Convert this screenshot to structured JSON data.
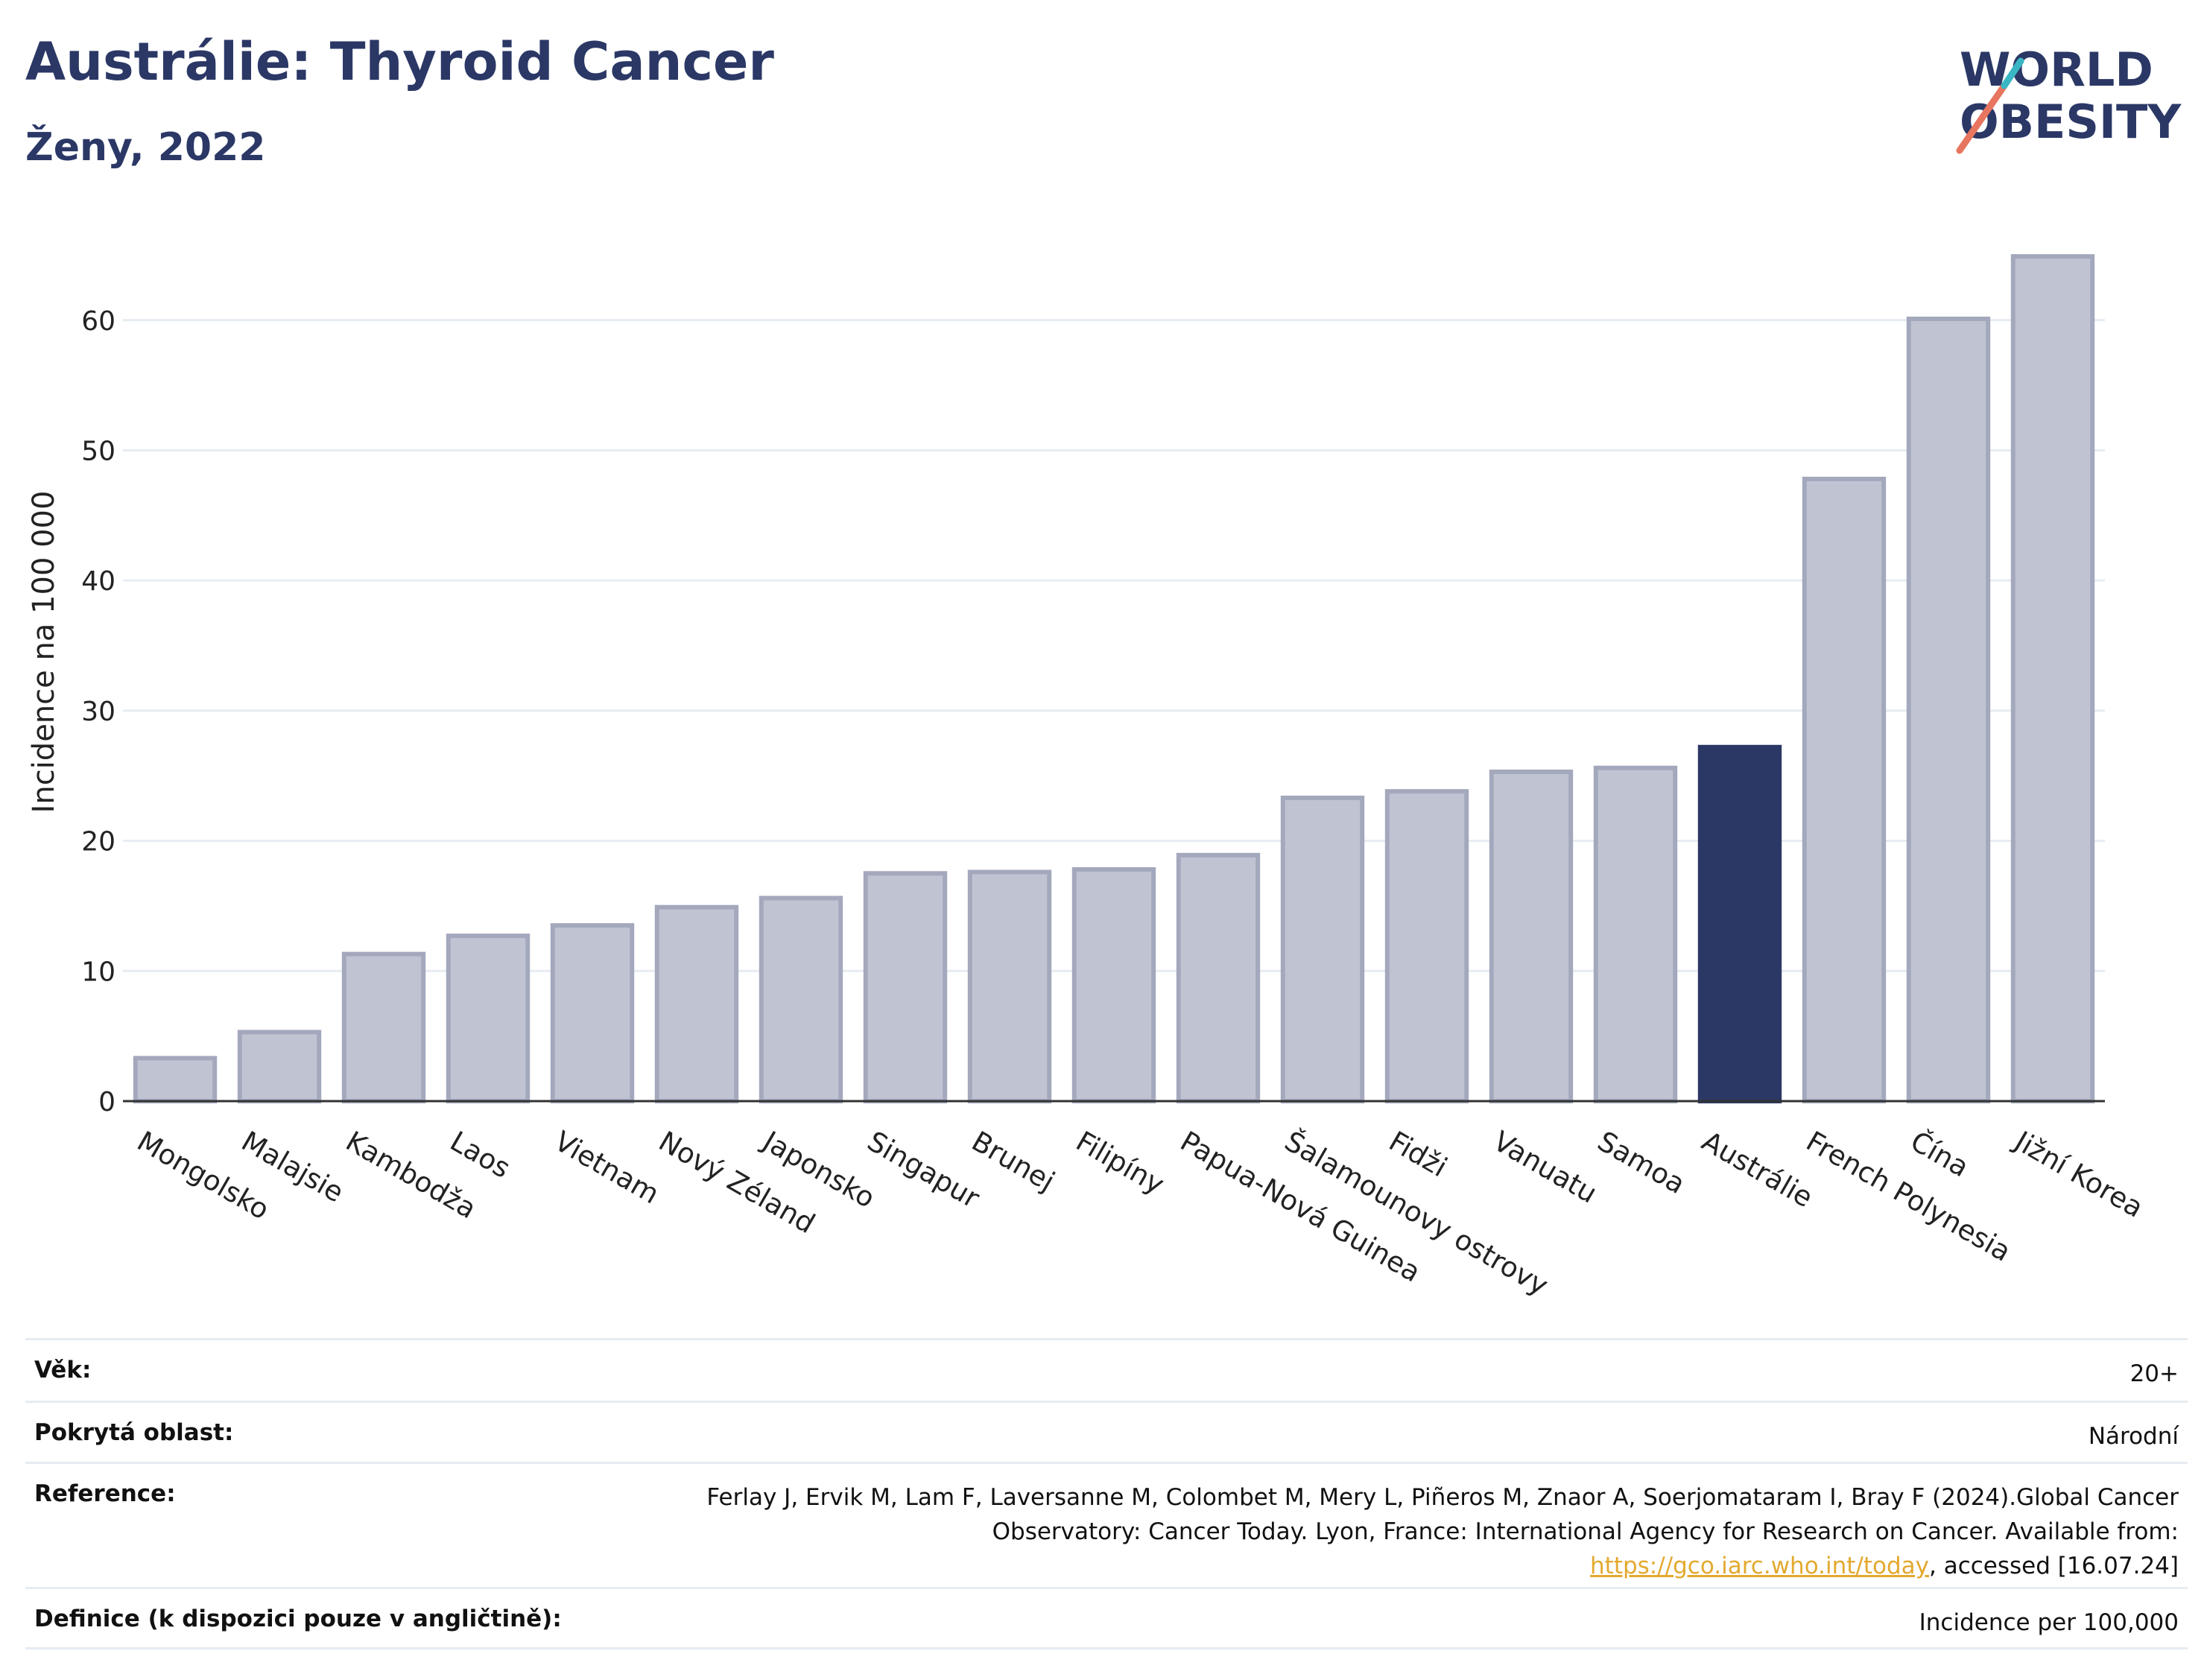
{
  "header": {
    "title": "Austrálie: Thyroid Cancer",
    "subtitle": "Ženy, 2022",
    "logo_line1": "WORLD",
    "logo_line2": "OBESITY"
  },
  "colors": {
    "title": "#2b3866",
    "bar_default": "#c0c4d2",
    "bar_default_stroke": "#a3a8bd",
    "bar_highlight": "#2b3866",
    "link": "#e3a92f",
    "grid": "#e6ecf2"
  },
  "chart_data": {
    "type": "bar",
    "ylabel": "Incidence na 100 000",
    "xlabel": "",
    "ylim": [
      0,
      68
    ],
    "yticks": [
      0,
      10,
      20,
      30,
      40,
      50,
      60
    ],
    "grid": true,
    "highlight": "Austrálie",
    "categories": [
      "Mongolsko",
      "Malajsie",
      "Kambodža",
      "Laos",
      "Vietnam",
      "Nový Zéland",
      "Japonsko",
      "Singapur",
      "Brunej",
      "Filipíny",
      "Papua-Nová Guinea",
      "Šalamounovy ostrovy",
      "Fidži",
      "Vanuatu",
      "Samoa",
      "Austrálie",
      "French Polynesia",
      "Čína",
      "Jižní Korea"
    ],
    "values": [
      3.3,
      5.3,
      11.3,
      12.7,
      13.5,
      14.9,
      15.6,
      17.5,
      17.6,
      17.8,
      18.9,
      23.3,
      23.8,
      25.3,
      25.6,
      27.2,
      47.8,
      60.1,
      64.9
    ]
  },
  "meta": [
    {
      "key": "Věk:",
      "value": "20+"
    },
    {
      "key": "Pokrytá oblast:",
      "value": "Národní"
    },
    {
      "key": "Reference:",
      "value_before": "Ferlay J, Ervik M, Lam F, Laversanne M, Colombet M, Mery L, Piñeros M, Znaor A, Soerjomataram I, Bray F (2024).Global Cancer Observatory: Cancer Today. Lyon, France: International Agency for Research on Cancer. Available from: ",
      "link": "https://gco.iarc.who.int/today",
      "value_after": ", accessed [16.07.24]"
    },
    {
      "key": "Definice (k dispozici pouze v angličtině):",
      "value": "Incidence per 100,000"
    }
  ]
}
